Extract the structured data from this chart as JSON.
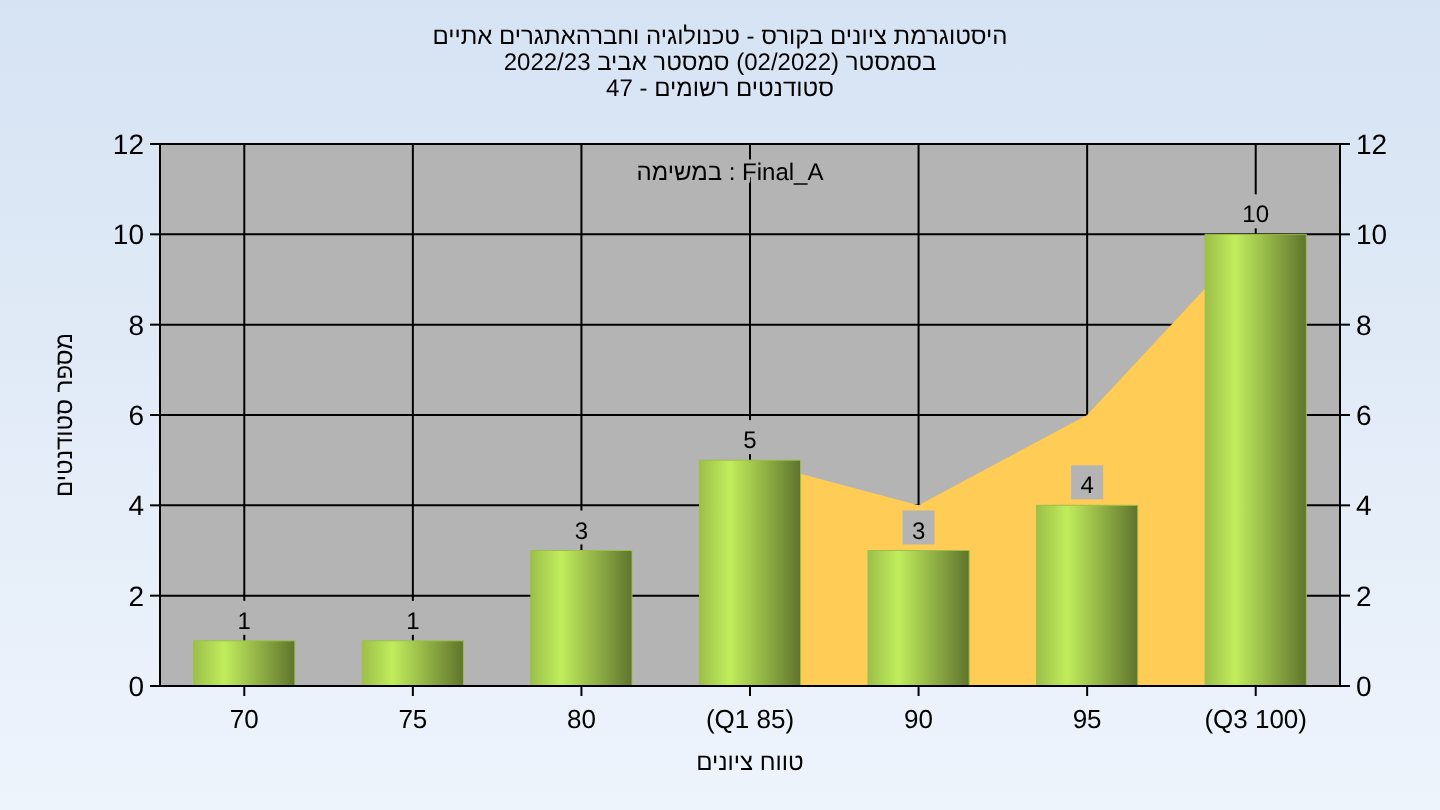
{
  "chart_data": {
    "type": "bar",
    "title": "היסטוגרמת ציונים בקורס - טכנולוגיה וחברהאתגרים אתיים",
    "subtitle": "בסמסטר  (02/2022)  סמסטר אביב 2022/23\nסטודנטים רשומים - 47",
    "xlabel": "טווח ציונים",
    "ylabel": "מספר סטודנטים",
    "annotations": [
      "במשימה : Final_A"
    ],
    "categories": [
      "70",
      "75",
      "80",
      "(Q1 85)",
      "90",
      "95",
      "(Q3 100)"
    ],
    "series": [
      {
        "type": "area",
        "color": "#ffcc55",
        "values": [
          null,
          null,
          null,
          5,
          4,
          6,
          10
        ]
      },
      {
        "color": "#9cbf4a",
        "values": [
          1,
          1,
          3,
          5,
          3,
          4,
          10
        ],
        "value_labels": [
          "1",
          "1",
          "3",
          "5",
          "3",
          "4",
          "10"
        ]
      }
    ],
    "ylim": [
      0,
      12
    ],
    "yticks": [
      0,
      2,
      4,
      6,
      8,
      10,
      12
    ],
    "y2lim": [
      0,
      12
    ],
    "y2ticks": [
      0,
      2,
      4,
      6,
      8,
      10,
      12
    ],
    "grid": true
  }
}
